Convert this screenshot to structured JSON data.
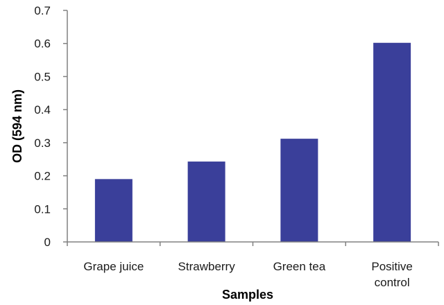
{
  "chart_data": {
    "type": "bar",
    "categories": [
      "Grape juice",
      "Strawberry",
      "Green tea",
      "Positive control"
    ],
    "category_lines": [
      [
        "Grape juice"
      ],
      [
        "Strawberry"
      ],
      [
        "Green tea"
      ],
      [
        "Positive",
        "control"
      ]
    ],
    "values": [
      0.19,
      0.243,
      0.312,
      0.602
    ],
    "xlabel": "Samples",
    "ylabel": "OD (594 nm)",
    "ylim": [
      0,
      0.7
    ],
    "yticks": [
      "0",
      "0.1",
      "0.2",
      "0.3",
      "0.4",
      "0.5",
      "0.6",
      "0.7"
    ],
    "grid": false,
    "legend": "none",
    "bar_color": "#3a3f9a"
  }
}
